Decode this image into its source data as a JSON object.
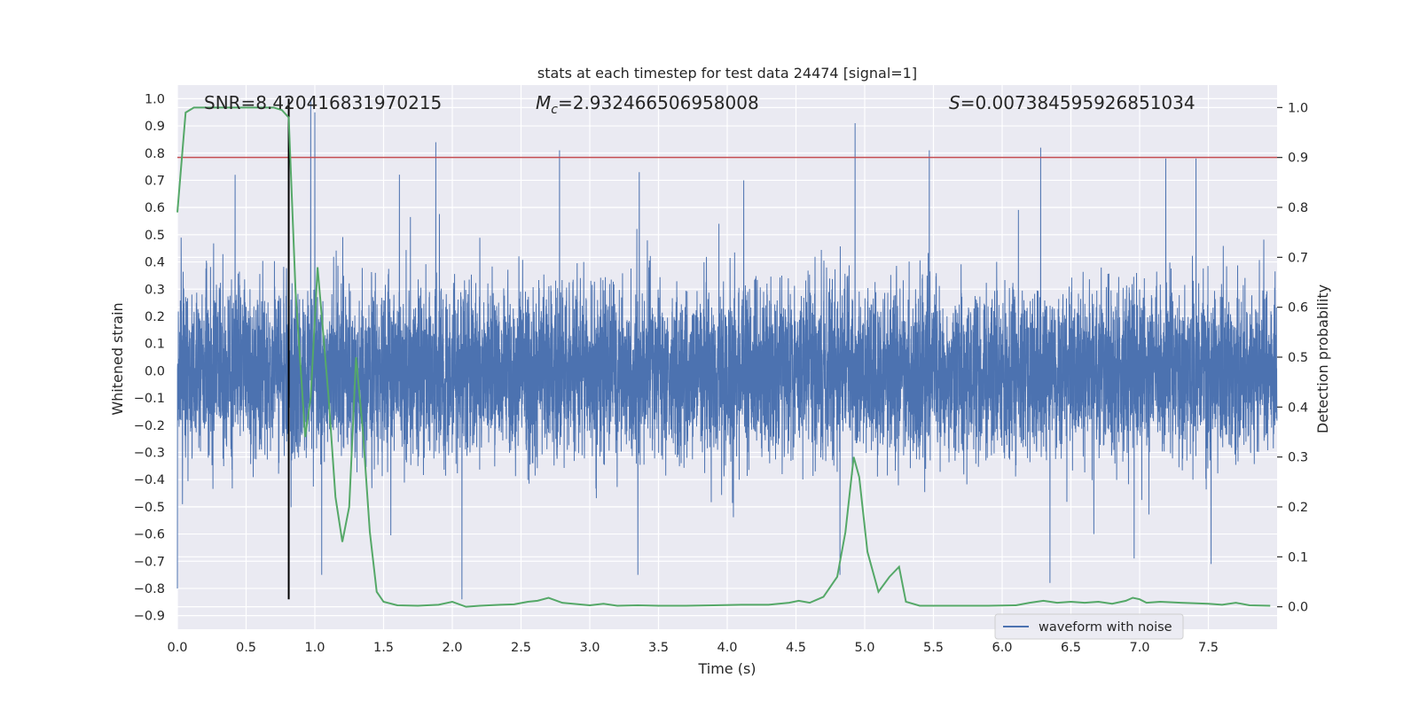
{
  "chart_data": {
    "type": "line",
    "title": "stats at each timestep for test data 24474 [signal=1]",
    "xlabel": "Time (s)",
    "ylabel_left": "Whitened strain",
    "ylabel_right": "Detection probability",
    "xlim": [
      0.0,
      8.0
    ],
    "ylim_left": [
      -0.95,
      1.05
    ],
    "ylim_right": [
      -0.045,
      1.045
    ],
    "xticks": [
      0.0,
      0.5,
      1.0,
      1.5,
      2.0,
      2.5,
      3.0,
      3.5,
      4.0,
      4.5,
      5.0,
      5.5,
      6.0,
      6.5,
      7.0,
      7.5
    ],
    "xtick_labels": [
      "0.0",
      "0.5",
      "1.0",
      "1.5",
      "2.0",
      "2.5",
      "3.0",
      "3.5",
      "4.0",
      "4.5",
      "5.0",
      "5.5",
      "6.0",
      "6.5",
      "7.0",
      "7.5"
    ],
    "yticks_left": [
      1.0,
      0.9,
      0.8,
      0.7,
      0.6,
      0.5,
      0.4,
      0.3,
      0.2,
      0.1,
      0.0,
      -0.1,
      -0.2,
      -0.3,
      -0.4,
      -0.5,
      -0.6,
      -0.7,
      -0.8,
      -0.9
    ],
    "ytick_labels_left": [
      "1.0",
      "0.9",
      "0.8",
      "0.7",
      "0.6",
      "0.5",
      "0.4",
      "0.3",
      "0.2",
      "0.1",
      "0.0",
      "−0.1",
      "−0.2",
      "−0.3",
      "−0.4",
      "−0.5",
      "−0.6",
      "−0.7",
      "−0.8",
      "−0.9"
    ],
    "yticks_right": [
      1.0,
      0.9,
      0.8,
      0.7,
      0.6,
      0.5,
      0.4,
      0.3,
      0.2,
      0.1,
      0.0
    ],
    "ytick_labels_right": [
      "1.0",
      "0.9",
      "0.8",
      "0.7",
      "0.6",
      "0.5",
      "0.4",
      "0.3",
      "0.2",
      "0.1",
      "0.0"
    ],
    "stats": {
      "snr": "SNR=8.420416831970215",
      "mc_symbol": "M",
      "mc_subscript": "c",
      "mc_value": "=2.932466506958008",
      "s_symbol": "S",
      "s_value": "=0.007384595926851034"
    },
    "threshold_right": 0.9,
    "vline_x": 0.81,
    "vline_ylim_left": [
      -0.84,
      1.0
    ],
    "waveform": {
      "name": "waveform with noise",
      "sample_rate": 2048,
      "duration": 8.0,
      "envelope": [
        0.42,
        0.4,
        0.4,
        0.41,
        0.4,
        0.4,
        0.41,
        0.4,
        0.4,
        0.4,
        0.4,
        0.4,
        0.41,
        0.4,
        0.4,
        0.4
      ],
      "spikes": [
        {
          "t": 0.0,
          "v": -0.8
        },
        {
          "t": 0.42,
          "v": 0.72
        },
        {
          "t": 0.81,
          "v": -0.62
        },
        {
          "t": 0.97,
          "v": 1.0
        },
        {
          "t": 1.0,
          "v": 0.95
        },
        {
          "t": 1.05,
          "v": -0.75
        },
        {
          "t": 1.88,
          "v": 0.84
        },
        {
          "t": 2.07,
          "v": -0.84
        },
        {
          "t": 2.78,
          "v": 0.81
        },
        {
          "t": 3.35,
          "v": -0.75
        },
        {
          "t": 3.36,
          "v": 0.73
        },
        {
          "t": 4.12,
          "v": 0.7
        },
        {
          "t": 4.93,
          "v": 0.91
        },
        {
          "t": 4.82,
          "v": -0.75
        },
        {
          "t": 5.47,
          "v": 0.81
        },
        {
          "t": 6.28,
          "v": 0.82
        },
        {
          "t": 6.96,
          "v": -0.69
        },
        {
          "t": 7.19,
          "v": 0.78
        },
        {
          "t": 7.52,
          "v": -0.71
        },
        {
          "t": 7.41,
          "v": 0.78
        }
      ]
    },
    "detection_probability": {
      "x": [
        0.0,
        0.06,
        0.12,
        0.2,
        0.3,
        0.4,
        0.5,
        0.6,
        0.7,
        0.76,
        0.81,
        0.86,
        0.93,
        0.97,
        1.02,
        1.06,
        1.1,
        1.15,
        1.2,
        1.25,
        1.3,
        1.35,
        1.4,
        1.45,
        1.5,
        1.6,
        1.75,
        1.9,
        2.0,
        2.1,
        2.2,
        2.35,
        2.45,
        2.55,
        2.62,
        2.7,
        2.8,
        3.0,
        3.1,
        3.2,
        3.35,
        3.5,
        3.7,
        3.9,
        4.1,
        4.3,
        4.45,
        4.52,
        4.6,
        4.7,
        4.8,
        4.86,
        4.92,
        4.96,
        5.02,
        5.1,
        5.18,
        5.25,
        5.3,
        5.4,
        5.55,
        5.7,
        5.9,
        6.1,
        6.2,
        6.3,
        6.4,
        6.5,
        6.6,
        6.7,
        6.8,
        6.9,
        6.95,
        7.0,
        7.05,
        7.15,
        7.3,
        7.5,
        7.6,
        7.7,
        7.8,
        7.95
      ],
      "y": [
        0.79,
        0.99,
        1.0,
        1.0,
        1.0,
        1.0,
        1.0,
        1.0,
        1.0,
        0.995,
        0.98,
        0.63,
        0.34,
        0.42,
        0.68,
        0.55,
        0.42,
        0.22,
        0.13,
        0.2,
        0.5,
        0.35,
        0.15,
        0.03,
        0.01,
        0.003,
        0.002,
        0.004,
        0.01,
        0.0,
        0.002,
        0.004,
        0.005,
        0.01,
        0.012,
        0.018,
        0.008,
        0.003,
        0.006,
        0.002,
        0.003,
        0.002,
        0.002,
        0.003,
        0.004,
        0.004,
        0.008,
        0.012,
        0.008,
        0.02,
        0.06,
        0.15,
        0.3,
        0.26,
        0.11,
        0.03,
        0.06,
        0.08,
        0.01,
        0.002,
        0.002,
        0.002,
        0.002,
        0.003,
        0.008,
        0.012,
        0.008,
        0.01,
        0.008,
        0.01,
        0.006,
        0.012,
        0.018,
        0.015,
        0.008,
        0.01,
        0.008,
        0.006,
        0.004,
        0.008,
        0.003,
        0.002
      ]
    },
    "legend": {
      "label": "waveform with noise",
      "location": "lower-right"
    },
    "colors": {
      "background": "#eaeaf2",
      "grid": "#ffffff",
      "waveform": "#4c72b0",
      "probability": "#55a868",
      "threshold": "#c44e52",
      "vline": "#000000"
    }
  }
}
